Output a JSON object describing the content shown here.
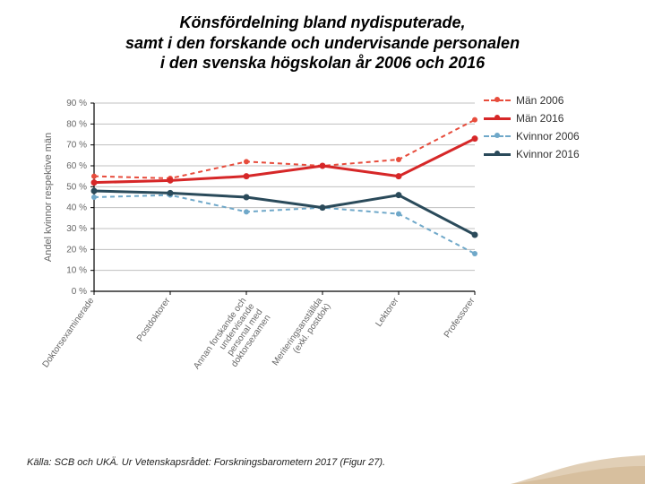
{
  "title": {
    "line1": "Könsfördelning bland nydisputerade,",
    "line2": "samt i den forskande och undervisande personalen",
    "line3": "i den svenska högskolan år 2006 och 2016",
    "fontsize": 18
  },
  "footer": "Källa: SCB och UKÄ. Ur Vetenskapsrådet: Forskningsbarometern 2017 (Figur 27).",
  "chart": {
    "type": "line",
    "background_color": "#ffffff",
    "axis_color": "#000000",
    "grid_color": "#c0c0c0",
    "ylabel": "Andel kvinnor respektive män",
    "ylabel_fontsize": 11,
    "ylabel_color": "#666666",
    "ylim": [
      0,
      90
    ],
    "ytick_step": 10,
    "ytick_suffix": " %",
    "tick_fontsize": 10,
    "tick_color": "#666666",
    "xlabel_fontsize": 10,
    "xlabel_rotation": -55,
    "categories": [
      "Doktorsexaminerade",
      "Postdoktorer",
      "Annan forskande och undervisande personal med doktorsexamen",
      "Meriteringsanställda (exkl. postdok)",
      "Lektorer",
      "Professorer"
    ],
    "series": [
      {
        "name": "Män 2006",
        "color": "#e74c3c",
        "dash": "5,4",
        "line_width": 2,
        "marker_r": 3,
        "values": [
          55,
          54,
          62,
          60,
          63,
          82
        ]
      },
      {
        "name": "Män 2016",
        "color": "#d62728",
        "dash": "",
        "line_width": 3,
        "marker_r": 3.5,
        "values": [
          52,
          53,
          55,
          60,
          55,
          73
        ]
      },
      {
        "name": "Kvinnor 2006",
        "color": "#6fa8c9",
        "dash": "5,4",
        "line_width": 2,
        "marker_r": 3,
        "values": [
          45,
          46,
          38,
          40,
          37,
          18
        ]
      },
      {
        "name": "Kvinnor 2016",
        "color": "#2a4a5a",
        "dash": "",
        "line_width": 3,
        "marker_r": 3.5,
        "values": [
          48,
          47,
          45,
          40,
          46,
          27
        ]
      }
    ],
    "legend": {
      "fontsize": 12,
      "text_color": "#333333"
    }
  }
}
